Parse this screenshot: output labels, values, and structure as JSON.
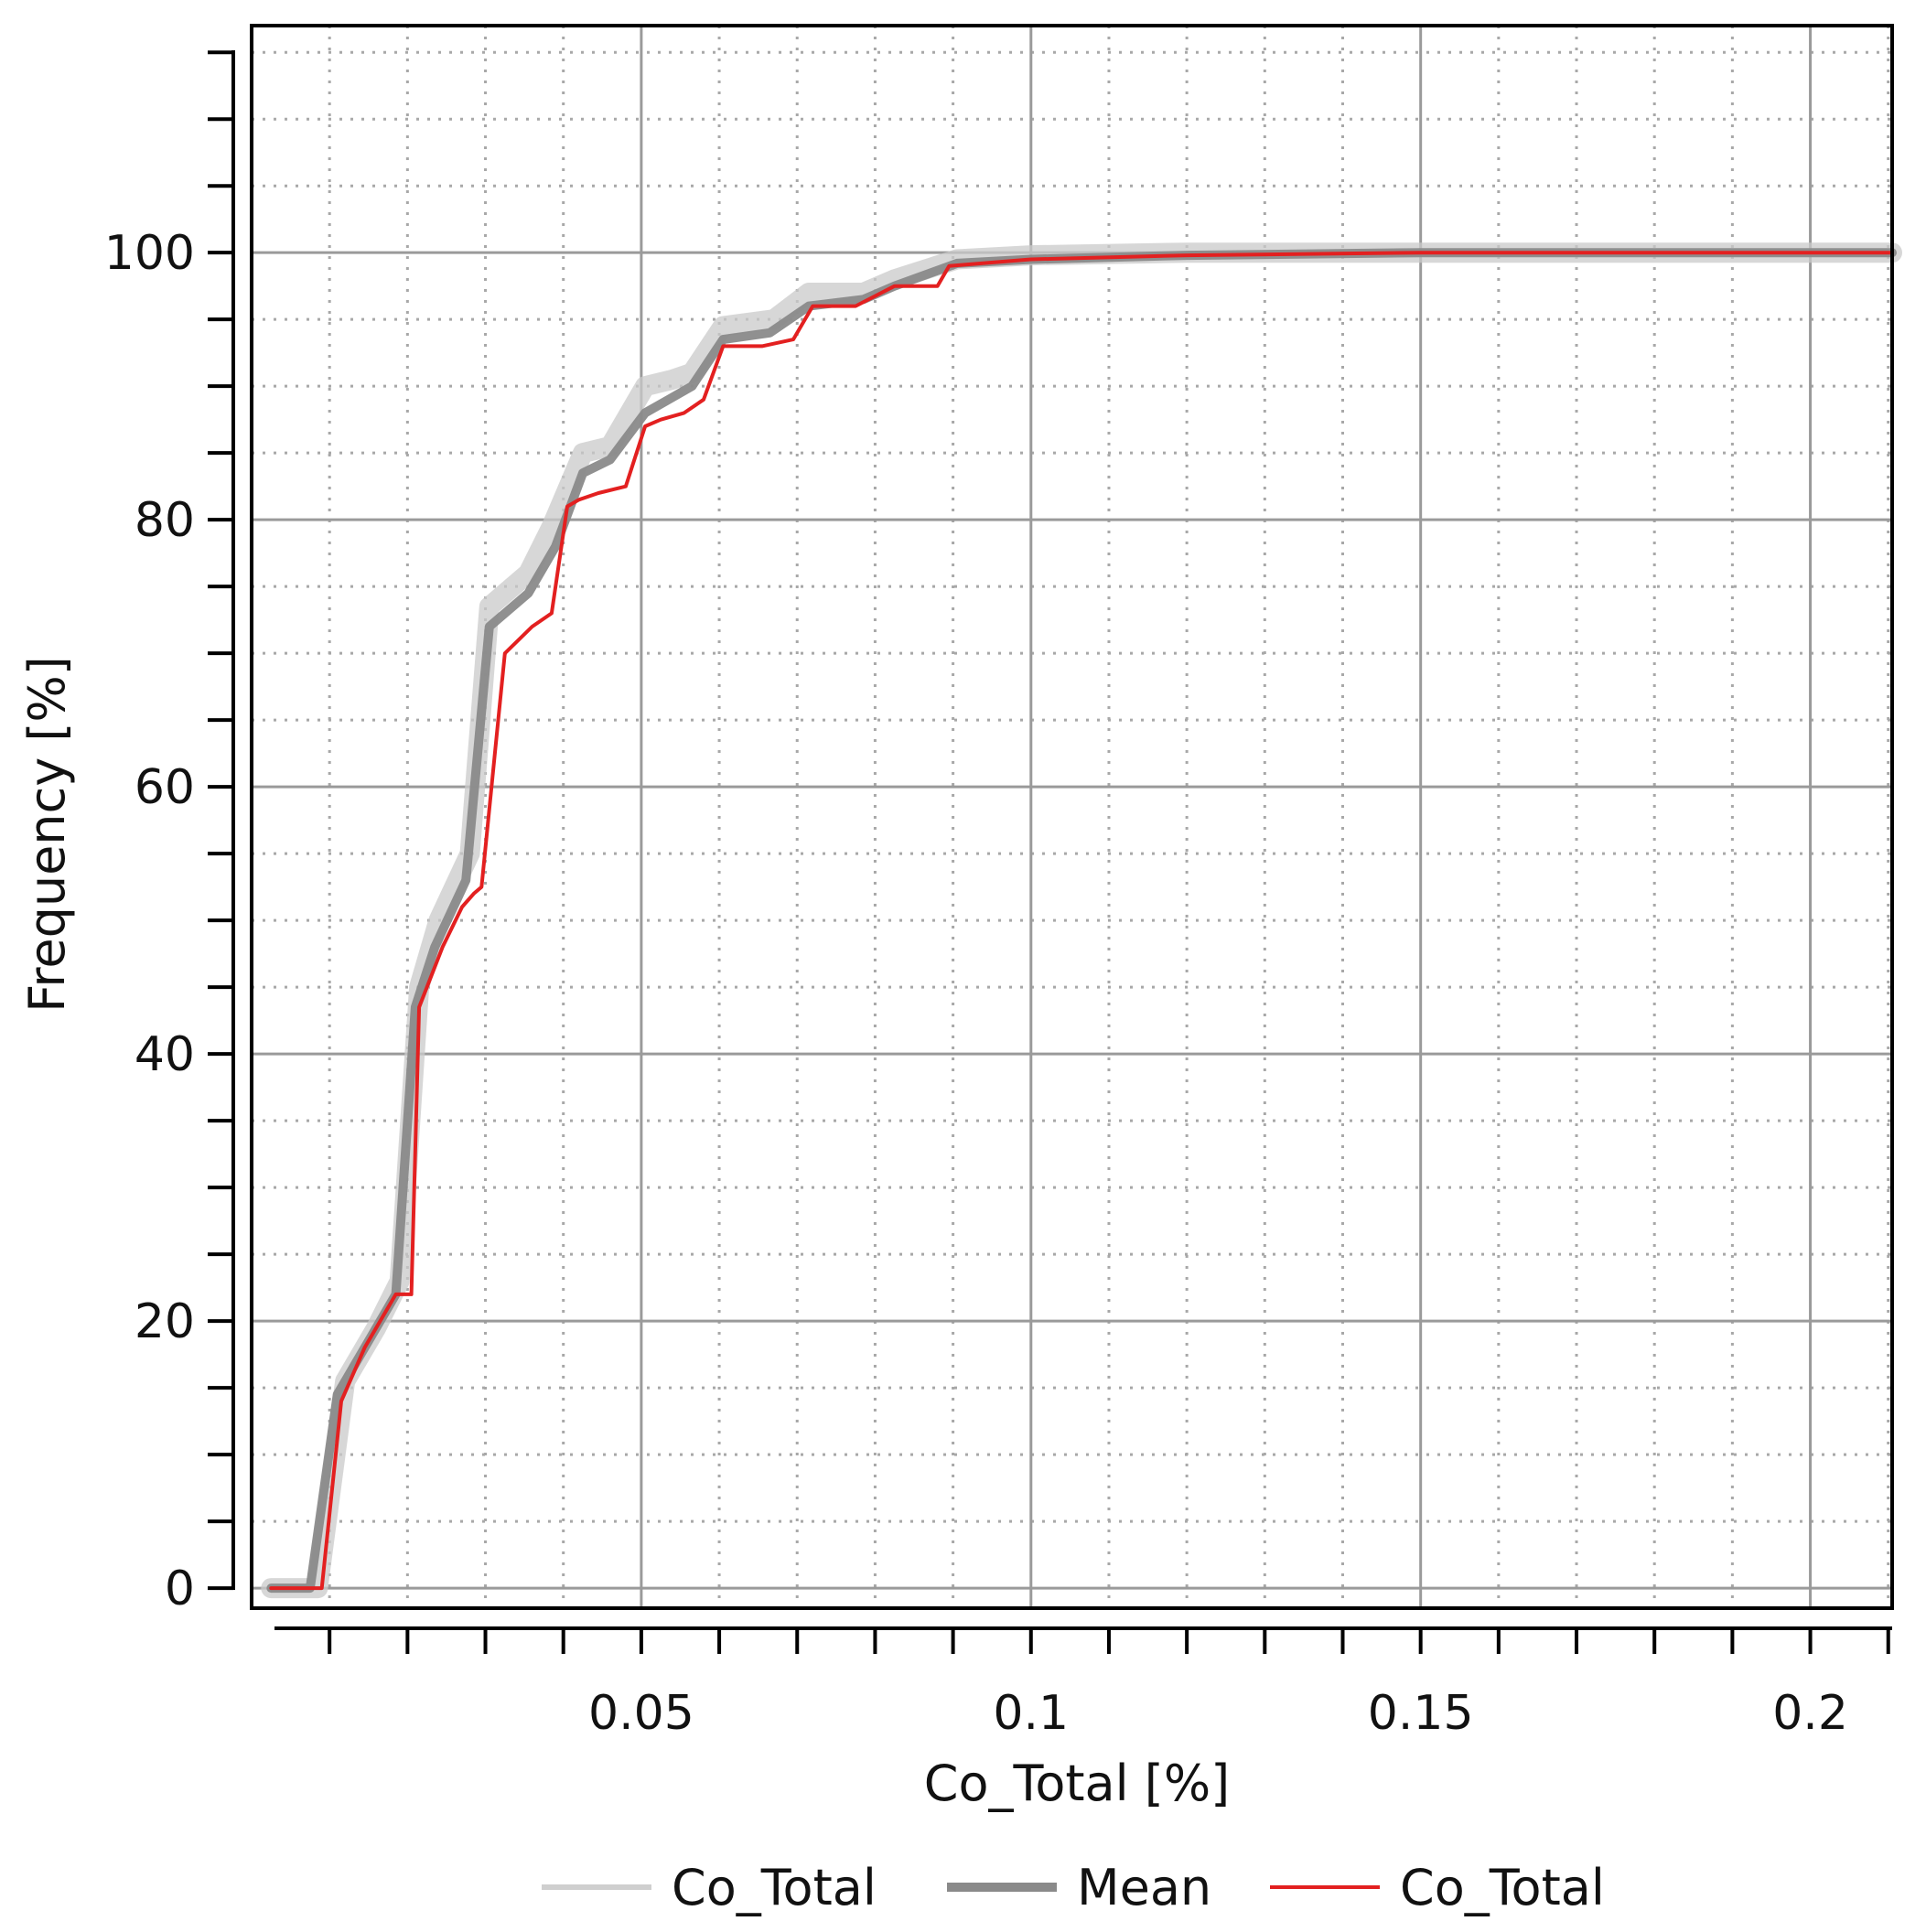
{
  "chart_data": {
    "type": "line",
    "xlabel": "Co_Total [%]",
    "ylabel": "Frequency [%]",
    "xlim": [
      0.0,
      0.2105
    ],
    "ylim": [
      -1.5,
      117
    ],
    "x_ticks": [
      0.05,
      0.1,
      0.15,
      0.2
    ],
    "x_tick_labels": [
      "0.05",
      "0.1",
      "0.15",
      "0.2"
    ],
    "y_ticks": [
      0,
      20,
      40,
      60,
      80,
      100
    ],
    "y_tick_labels": [
      "0",
      "20",
      "40",
      "60",
      "80",
      "100"
    ],
    "grid": "major solid, minor dotted",
    "legend_position": "bottom",
    "series": [
      {
        "name": "Co_Total",
        "role": "simulations",
        "color": "#c9c9c9",
        "x": [
          0.0025,
          0.0085,
          0.012,
          0.016,
          0.019,
          0.0215,
          0.024,
          0.028,
          0.0305,
          0.0355,
          0.0385,
          0.0425,
          0.046,
          0.0505,
          0.054,
          0.0565,
          0.0605,
          0.067,
          0.0715,
          0.0785,
          0.0825,
          0.0905,
          0.1,
          0.12,
          0.15,
          0.2105
        ],
        "values": [
          0,
          0,
          15.5,
          19.5,
          23,
          45,
          50,
          55,
          73.5,
          76,
          79.5,
          85,
          85.5,
          90,
          90.5,
          91,
          94.5,
          95,
          97,
          97,
          98,
          99.5,
          99.8,
          100,
          100,
          100
        ]
      },
      {
        "name": "Mean",
        "role": "mean",
        "color": "#8a8a8a",
        "x": [
          0.0025,
          0.006,
          0.0075,
          0.011,
          0.015,
          0.0185,
          0.021,
          0.0235,
          0.0275,
          0.0305,
          0.0355,
          0.039,
          0.0425,
          0.046,
          0.0505,
          0.0535,
          0.0565,
          0.0605,
          0.0665,
          0.0715,
          0.0785,
          0.0825,
          0.0905,
          0.1,
          0.12,
          0.15,
          0.2105
        ],
        "values": [
          0,
          0,
          0,
          14.5,
          18.5,
          22,
          43.5,
          48,
          53,
          72,
          74.5,
          78,
          83.5,
          84.5,
          88,
          89,
          90,
          93.5,
          94,
          96,
          96.5,
          97.5,
          99.2,
          99.5,
          99.8,
          100,
          100
        ]
      },
      {
        "name": "Co_Total",
        "role": "observed",
        "color": "#e32020",
        "x": [
          0.0025,
          0.009,
          0.0115,
          0.0145,
          0.0185,
          0.0205,
          0.0215,
          0.0245,
          0.027,
          0.0285,
          0.0295,
          0.0325,
          0.036,
          0.0385,
          0.0405,
          0.042,
          0.0445,
          0.048,
          0.0505,
          0.0525,
          0.0555,
          0.058,
          0.0605,
          0.0655,
          0.0695,
          0.072,
          0.0745,
          0.0775,
          0.0825,
          0.088,
          0.0895,
          0.1,
          0.12,
          0.15,
          0.2105
        ],
        "values": [
          0,
          0,
          14,
          18,
          22,
          22,
          43.5,
          48,
          51,
          52,
          52.5,
          70,
          72,
          73,
          81,
          81.5,
          82,
          82.5,
          87,
          87.5,
          88,
          89,
          93,
          93,
          93.5,
          96,
          96,
          96,
          97.5,
          97.5,
          99,
          99.5,
          99.8,
          100,
          100
        ]
      }
    ]
  },
  "legend": [
    {
      "label": "Co_Total",
      "color": "#c9c9c9",
      "stroke_style": "light-thin"
    },
    {
      "label": "Mean",
      "color": "#8a8a8a",
      "stroke_style": "thick"
    },
    {
      "label": "Co_Total",
      "color": "#e32020",
      "stroke_style": "thin"
    }
  ]
}
